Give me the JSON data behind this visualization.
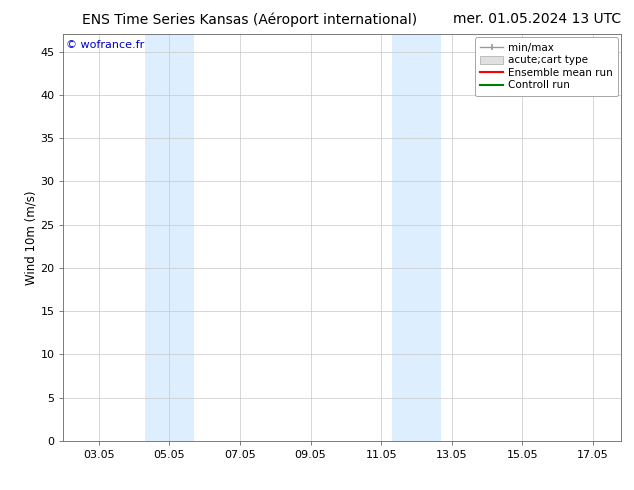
{
  "title_left": "ENS Time Series Kansas (Aéroport international)",
  "title_right": "mer. 01.05.2024 13 UTC",
  "ylabel": "Wind 10m (m/s)",
  "watermark": "© wofrance.fr",
  "xtick_labels": [
    "03.05",
    "05.05",
    "07.05",
    "09.05",
    "11.05",
    "13.05",
    "15.05",
    "17.05"
  ],
  "xtick_positions": [
    3,
    5,
    7,
    9,
    11,
    13,
    15,
    17
  ],
  "xlim": [
    2.0,
    17.8
  ],
  "ylim": [
    0,
    47
  ],
  "ytick_positions": [
    0,
    5,
    10,
    15,
    20,
    25,
    30,
    35,
    40,
    45
  ],
  "ytick_labels": [
    "0",
    "5",
    "10",
    "15",
    "20",
    "25",
    "30",
    "35",
    "40",
    "45"
  ],
  "shaded_bands": [
    {
      "x_start": 4.3,
      "x_end": 5.7
    },
    {
      "x_start": 11.3,
      "x_end": 12.7
    }
  ],
  "shaded_color": "#ddeeff",
  "background_color": "#ffffff",
  "grid_color": "#c8c8c8",
  "legend_entries": [
    {
      "label": "min/max",
      "color": "#999999",
      "lw": 1.0
    },
    {
      "label": "acute;cart type",
      "color": "#cccccc",
      "lw": 6
    },
    {
      "label": "Ensemble mean run",
      "color": "red",
      "lw": 1.5
    },
    {
      "label": "Controll run",
      "color": "green",
      "lw": 1.5
    }
  ],
  "title_fontsize": 10,
  "tick_fontsize": 8,
  "legend_fontsize": 7.5,
  "ylabel_fontsize": 8.5,
  "watermark_color": "#0000cc",
  "watermark_fontsize": 8
}
